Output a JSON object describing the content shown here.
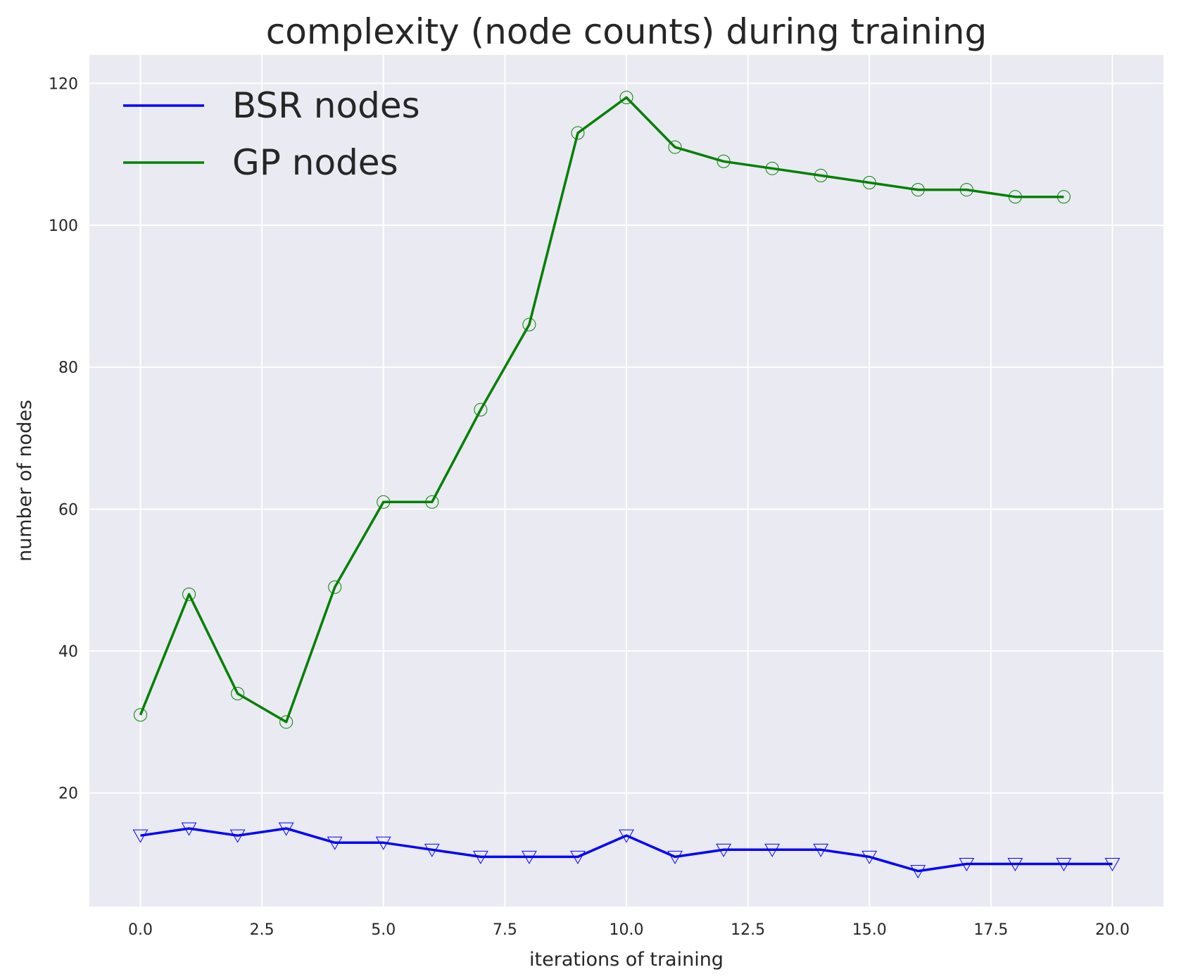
{
  "chart_data": {
    "type": "line",
    "title": "complexity (node counts) during training",
    "xlabel": "iterations of training",
    "ylabel": "number of nodes",
    "xlim": [
      -1.05,
      21.05
    ],
    "ylim": [
      4,
      124
    ],
    "xticks": [
      0.0,
      2.5,
      5.0,
      7.5,
      10.0,
      12.5,
      15.0,
      17.5,
      20.0
    ],
    "xtick_labels": [
      "0.0",
      "2.5",
      "5.0",
      "7.5",
      "10.0",
      "12.5",
      "15.0",
      "17.5",
      "20.0"
    ],
    "yticks": [
      20,
      40,
      60,
      80,
      100,
      120
    ],
    "ytick_labels": [
      "20",
      "40",
      "60",
      "80",
      "100",
      "120"
    ],
    "grid": true,
    "legend_position": "top-left",
    "series": [
      {
        "name": "BSR nodes",
        "color": "#0000ff",
        "marker": "triangle-down",
        "x": [
          0,
          1,
          2,
          3,
          4,
          5,
          6,
          7,
          8,
          9,
          10,
          11,
          12,
          13,
          14,
          15,
          16,
          17,
          18,
          19,
          20
        ],
        "values": [
          14,
          15,
          14,
          15,
          13,
          13,
          12,
          11,
          11,
          11,
          14,
          11,
          12,
          12,
          12,
          11,
          9,
          10,
          10,
          10,
          10
        ]
      },
      {
        "name": "GP nodes",
        "color": "#008000",
        "marker": "circle",
        "x": [
          0,
          1,
          2,
          3,
          4,
          5,
          6,
          7,
          8,
          9,
          10,
          11,
          12,
          13,
          14,
          15,
          16,
          17,
          18,
          19
        ],
        "values": [
          31,
          48,
          34,
          30,
          49,
          61,
          61,
          74,
          86,
          113,
          118,
          111,
          109,
          108,
          107,
          106,
          105,
          105,
          104,
          104
        ]
      }
    ],
    "colors": {
      "background": "#eaeaf2",
      "grid": "#ffffff"
    }
  }
}
